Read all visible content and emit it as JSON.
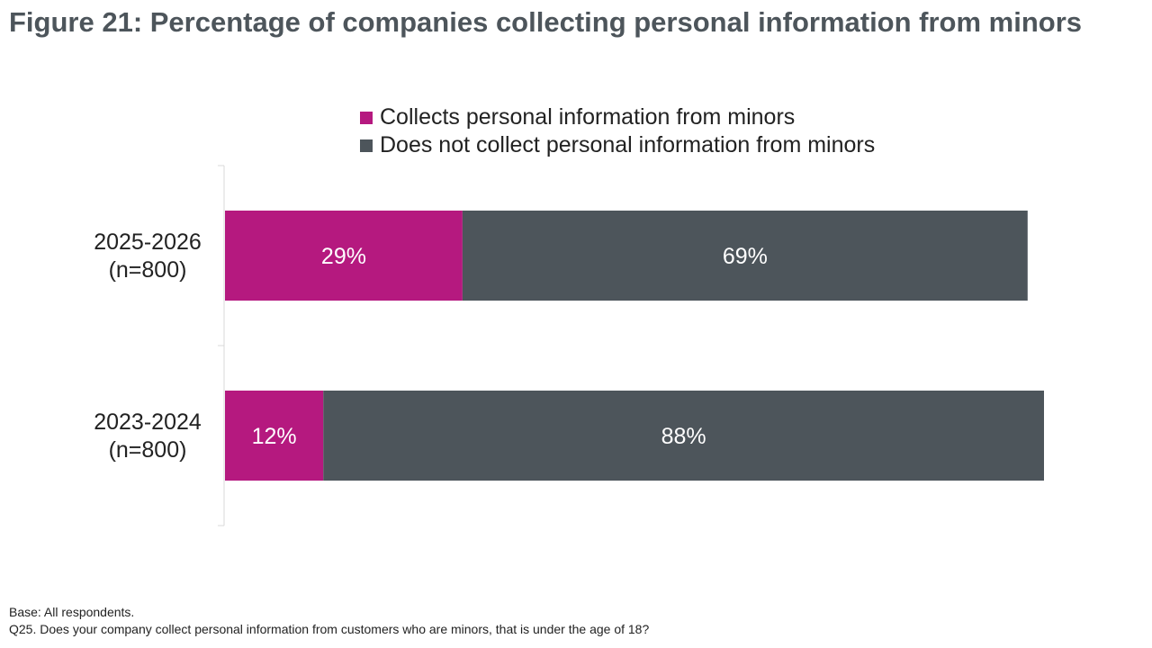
{
  "title": "Figure 21: Percentage of companies collecting personal information from minors",
  "colors": {
    "collects": "#b5197f",
    "not_collect": "#4d555b",
    "axis": "#d9d9d9",
    "bar_label": "#ffffff",
    "category_label": "#222222"
  },
  "chart_data": {
    "type": "bar",
    "orientation": "horizontal",
    "stacked": true,
    "categories": [
      [
        "2025-2026",
        "(n=800)"
      ],
      [
        "2023-2024",
        "(n=800)"
      ]
    ],
    "series": [
      {
        "name": "Collects personal information from minors",
        "values": [
          29,
          12
        ],
        "labels": [
          "29%",
          "12%"
        ]
      },
      {
        "name": "Does not collect personal information from minors",
        "values": [
          69,
          88
        ],
        "labels": [
          "69%",
          "88%"
        ]
      }
    ],
    "xlim": [
      0,
      100
    ],
    "unit": "%",
    "grid": false,
    "legend_position": "top"
  },
  "footnotes": {
    "base": "Base: All respondents.",
    "question": "Q25. Does your company collect personal information from customers who are minors, that is under the age of 18?"
  }
}
